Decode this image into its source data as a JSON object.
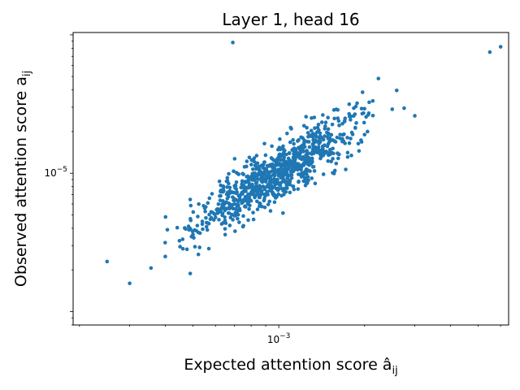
{
  "chart_data": {
    "type": "scatter",
    "title": "Layer 1, head 16",
    "xlabel": "Expected attention score â",
    "xlabel_sub": "ij",
    "ylabel": "Observed attention score a",
    "ylabel_sub": "ij",
    "x_scale": "log",
    "y_scale": "log",
    "xlim": [
      0.00019,
      0.0064
    ],
    "ylim": [
      8e-07,
      0.000104
    ],
    "x_tick_labels": [
      {
        "value": 0.001,
        "base": "10",
        "exp": "−3"
      }
    ],
    "y_tick_labels": [
      {
        "value": 1e-05,
        "base": "10",
        "exp": "−5"
      }
    ],
    "grid": false,
    "marker_color": "#1f77b4",
    "series_sample": {
      "x": [
        0.00025,
        0.0003,
        0.0004,
        0.0005,
        0.0006,
        0.0007,
        0.0008,
        0.001,
        0.0012,
        0.0015,
        0.002,
        0.0025,
        0.003,
        0.0055,
        0.006,
        0.00069
      ],
      "y": [
        2.3e-06,
        1.6e-06,
        2.5e-06,
        3.6e-06,
        4.8e-06,
        6e-06,
        7.2e-06,
        9.6e-06,
        1.1e-05,
        1.4e-05,
        1.9e-05,
        2.9e-05,
        2.6e-05,
        7.5e-05,
        8.2e-05,
        8.8e-05
      ]
    }
  }
}
